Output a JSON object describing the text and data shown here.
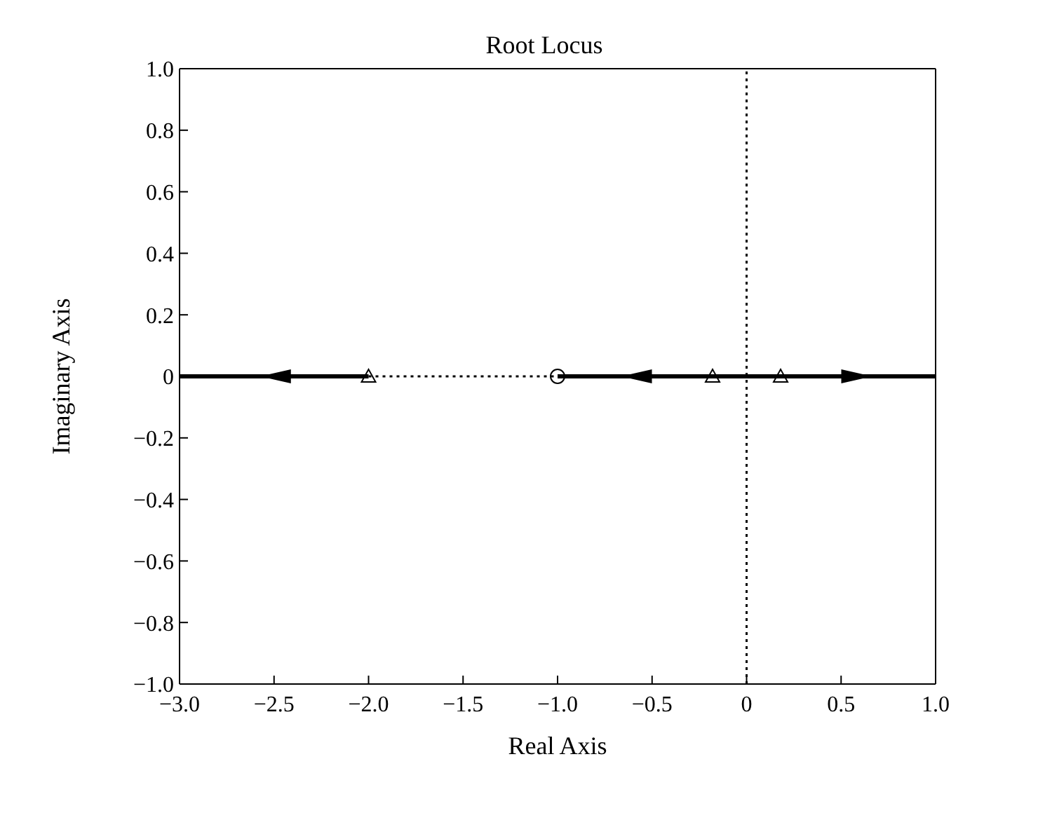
{
  "chart_data": {
    "type": "line",
    "title": "Root Locus",
    "xlabel": "Real Axis",
    "ylabel": "Imaginary Axis",
    "xlim": [
      -3,
      1
    ],
    "xticks": [
      {
        "value": -3,
        "label": "−3.0"
      },
      {
        "value": -2.5,
        "label": "−2.5"
      },
      {
        "value": -2,
        "label": "−2.0"
      },
      {
        "value": -1.5,
        "label": "−1.5"
      },
      {
        "value": -1,
        "label": "−1.0"
      },
      {
        "value": -0.5,
        "label": "−0.5"
      },
      0,
      0.5,
      {
        "value": 1,
        "label": "1.0"
      }
    ],
    "ylim": [
      -1,
      1
    ],
    "yticks": [
      {
        "value": -1,
        "label": "−1.0"
      },
      {
        "value": -0.8,
        "label": "−0.8"
      },
      {
        "value": -0.6,
        "label": "−0.6"
      },
      {
        "value": -0.4,
        "label": "−0.4"
      },
      {
        "value": -0.2,
        "label": "−0.2"
      },
      0,
      0.2,
      0.4,
      0.6,
      0.8,
      {
        "value": 1,
        "label": "1.0"
      }
    ],
    "grid": false,
    "legend": false,
    "series": [
      {
        "color": "#000000",
        "line_style": "solid",
        "marker": "none",
        "x": [
          -2,
          -3
        ],
        "values": [
          0,
          0
        ]
      },
      {
        "color": "#000000",
        "line_style": "dotted",
        "marker": "none",
        "x": [
          -2,
          -1
        ],
        "values": [
          0,
          0
        ]
      },
      {
        "color": "#000000",
        "line_style": "solid",
        "marker": "none",
        "x": [
          -0.18,
          -1
        ],
        "values": [
          0,
          0
        ]
      },
      {
        "color": "#000000",
        "line_style": "solid",
        "marker": "none",
        "x": [
          -0.18,
          0.18,
          1
        ],
        "values": [
          0,
          0,
          0
        ]
      },
      {
        "type": "scatter",
        "color": "#000000",
        "marker": "triangle",
        "x": [
          -2,
          -0.18,
          0.18
        ],
        "values": [
          0,
          0,
          0
        ]
      },
      {
        "type": "scatter",
        "color": "#000000",
        "marker": "circle",
        "x": [
          -1
        ],
        "values": [
          0
        ]
      }
    ],
    "ref_lines": [
      {
        "axis": "x",
        "value": 0,
        "line_style": "dotted",
        "color": "#000000"
      }
    ]
  }
}
